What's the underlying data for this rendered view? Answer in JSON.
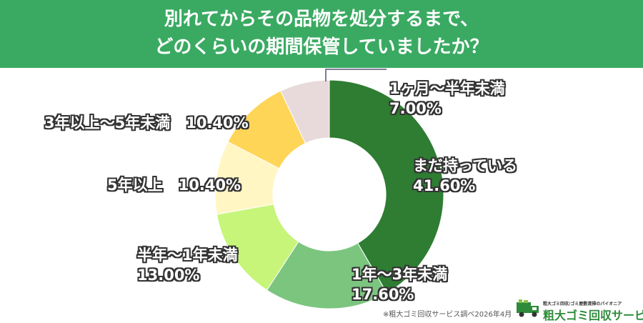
{
  "title": {
    "line1": "別れてからその品物を処分するまで、",
    "line2": "どのくらいの期間保管していましたか？"
  },
  "chart_data": {
    "type": "pie",
    "donut": true,
    "title": "別れてからその品物を処分するまで、どのくらいの期間保管していましたか？",
    "series": [
      {
        "name": "まだ持っている",
        "value": 41.6,
        "value_label": "41.60%",
        "color": "#2e7d32"
      },
      {
        "name": "1年〜3年未満",
        "value": 17.6,
        "value_label": "17.60%",
        "color": "#7cc57f"
      },
      {
        "name": "半年〜1年未満",
        "value": 13.0,
        "value_label": "13.00%",
        "color": "#c6f57a"
      },
      {
        "name": "5年以上",
        "value": 10.4,
        "value_label": "10.40%",
        "color": "#fff6c4"
      },
      {
        "name": "3年以上〜5年未満",
        "value": 10.4,
        "value_label": "10.40%",
        "color": "#ffd557"
      },
      {
        "name": "1ヶ月〜半年未満",
        "value": 7.0,
        "value_label": "7.00%",
        "color": "#e8dada"
      }
    ]
  },
  "footer": {
    "source": "※粗大ゴミ回収サービス調べ2026年4月",
    "logo_tagline": "粗大ゴミ回収/ゴミ屋敷清掃のパイオニア",
    "logo_name": "粗大ゴミ回収サービス"
  },
  "colors": {
    "header_bg": "#3aaa62",
    "label_outline": "#333333"
  }
}
